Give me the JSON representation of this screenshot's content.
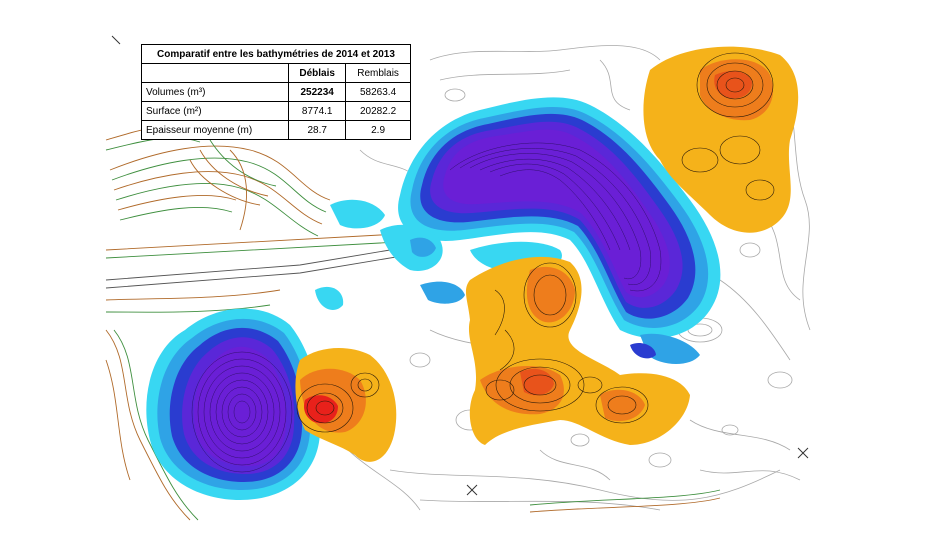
{
  "table": {
    "title": "Comparatif entre les bathymétries de 2014 et 2013",
    "columns": [
      "Déblais",
      "Remblais"
    ],
    "rows": [
      {
        "label": "Volumes (m³)",
        "deblais": "252234",
        "remblais": "58263.4"
      },
      {
        "label": "Surface (m²)",
        "deblais": "8774.1",
        "remblais": "20282.2"
      },
      {
        "label": "Epaisseur moyenne (m)",
        "deblais": "28.7",
        "remblais": "2.9"
      }
    ]
  },
  "legend_colors": {
    "deep_cut": "#6a1fd6",
    "cut": "#2a3cd0",
    "shallow_cut": "#2fa3e6",
    "very_shallow_cut": "#38d7f2",
    "fill": "#f5b21a",
    "deep_fill": "#ee7d1c",
    "max_fill": "#e8211b",
    "contour_gray": "#9a9a9a",
    "contour_brown": "#b06a2a",
    "contour_green": "#3f8f3f"
  },
  "markers": [
    "x-marker",
    "x-marker"
  ]
}
